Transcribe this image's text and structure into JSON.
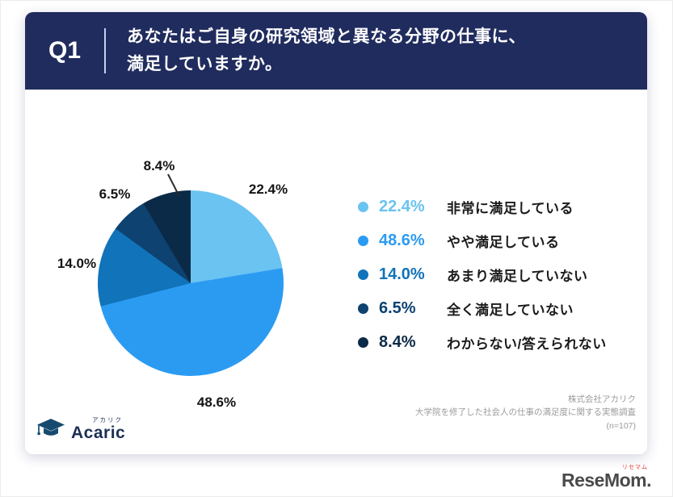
{
  "header": {
    "q_label": "Q1",
    "title_line1": "あなたはご自身の研究領域と異なる分野の仕事に、",
    "title_line2": "満足していますか。"
  },
  "chart_data": {
    "type": "pie",
    "title": "あなたはご自身の研究領域と異なる分野の仕事に、満足していますか。",
    "categories": [
      "非常に満足している",
      "やや満足している",
      "あまり満足していない",
      "全く満足していない",
      "わからない/答えられない"
    ],
    "values": [
      22.4,
      48.6,
      14.0,
      6.5,
      8.4
    ],
    "unit": "%",
    "value_labels": [
      "22.4%",
      "48.6%",
      "14.0%",
      "6.5%",
      "8.4%"
    ],
    "colors": [
      "#6ac3f1",
      "#2b9bf2",
      "#1173b9",
      "#0d4271",
      "#0b2a47"
    ],
    "start_angle_deg": 0,
    "direction": "clockwise",
    "legend_position": "right",
    "sample_note": "(n=107)"
  },
  "legend": {
    "items": [
      {
        "pct": "22.4%",
        "label": "非常に満足している",
        "color": "#6ac3f1"
      },
      {
        "pct": "48.6%",
        "label": "やや満足している",
        "color": "#2b9bf2"
      },
      {
        "pct": "14.0%",
        "label": "あまり満足していない",
        "color": "#1173b9"
      },
      {
        "pct": "6.5%",
        "label": "全く満足していない",
        "color": "#0d4271"
      },
      {
        "pct": "8.4%",
        "label": "わからない/答えられない",
        "color": "#0b2a47"
      }
    ]
  },
  "source": {
    "company": "株式会社アカリク",
    "survey": "大学院を修了した社会人の仕事の満足度に関する実態調査",
    "sample": "(n=107)"
  },
  "branding": {
    "acaric_name": "Acaric",
    "acaric_kana": "アカリク",
    "resemom_name": "ReseMom.",
    "resemom_kana": "リセマム"
  }
}
